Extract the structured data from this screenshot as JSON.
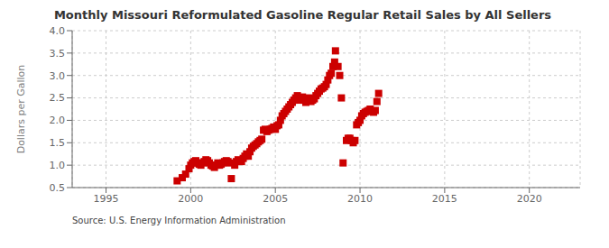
{
  "chart_data": {
    "type": "scatter",
    "title": "Monthly Missouri Reformulated Gasoline Regular Retail Sales by All Sellers",
    "y_label": "Dollars per Gallon",
    "annotations": [
      "Source: U.S. Energy Information Administration"
    ],
    "color": "#cc0000",
    "marker": "square",
    "grid": true,
    "xlim": [
      1993.0,
      2023.0
    ],
    "ylim": [
      0.5,
      4.0
    ],
    "xticks": [
      1995,
      2000,
      2005,
      2010,
      2015,
      2020
    ],
    "yticks": [
      0.5,
      {
        "value": 1.0,
        "label": "1.0"
      },
      1.5,
      {
        "value": 2.0,
        "label": "2.0"
      },
      2.5,
      {
        "value": 3.0,
        "label": "3.0"
      },
      3.5,
      {
        "value": 4.0,
        "label": "4.0"
      }
    ],
    "x": [
      1999.2,
      1999.5,
      1999.7,
      1999.9,
      2000.0,
      2000.1,
      2000.2,
      2000.3,
      2000.4,
      2000.5,
      2000.6,
      2000.7,
      2000.8,
      2000.9,
      2001.0,
      2001.1,
      2001.2,
      2001.3,
      2001.4,
      2001.5,
      2001.6,
      2001.7,
      2001.8,
      2001.9,
      2002.0,
      2002.1,
      2002.2,
      2002.3,
      2002.4,
      2002.6,
      2002.7,
      2002.8,
      2002.9,
      2003.0,
      2003.1,
      2003.2,
      2003.3,
      2003.4,
      2003.5,
      2003.6,
      2003.7,
      2003.8,
      2003.9,
      2004.0,
      2004.1,
      2004.2,
      2004.3,
      2004.4,
      2004.5,
      2004.6,
      2004.7,
      2004.8,
      2004.9,
      2005.0,
      2005.1,
      2005.2,
      2005.3,
      2005.4,
      2005.5,
      2005.6,
      2005.7,
      2005.8,
      2005.9,
      2006.0,
      2006.1,
      2006.2,
      2006.3,
      2006.4,
      2006.5,
      2006.6,
      2006.7,
      2006.8,
      2006.9,
      2007.0,
      2007.1,
      2007.2,
      2007.3,
      2007.4,
      2007.5,
      2007.6,
      2007.7,
      2007.8,
      2007.9,
      2008.0,
      2008.1,
      2008.2,
      2008.3,
      2008.4,
      2008.5,
      2008.55,
      2008.7,
      2008.8,
      2008.9,
      2009.0,
      2009.2,
      2009.3,
      2009.4,
      2009.5,
      2009.6,
      2009.7,
      2009.8,
      2009.9,
      2010.0,
      2010.1,
      2010.2,
      2010.3,
      2010.4,
      2010.5,
      2010.6,
      2010.7,
      2010.8,
      2010.9,
      2011.0,
      2011.1
    ],
    "values": [
      0.65,
      0.72,
      0.8,
      0.92,
      1.0,
      1.05,
      1.08,
      1.1,
      1.05,
      1.02,
      1.0,
      1.05,
      1.08,
      1.12,
      1.1,
      1.05,
      1.0,
      0.98,
      0.95,
      1.0,
      1.05,
      1.0,
      1.02,
      1.05,
      1.08,
      1.1,
      1.08,
      1.05,
      0.7,
      1.0,
      1.08,
      1.12,
      1.1,
      1.08,
      1.15,
      1.2,
      1.25,
      1.2,
      1.3,
      1.38,
      1.42,
      1.45,
      1.48,
      1.52,
      1.55,
      1.58,
      1.78,
      1.8,
      1.75,
      1.78,
      1.8,
      1.82,
      1.85,
      1.8,
      1.88,
      1.9,
      2.0,
      2.1,
      2.15,
      2.2,
      2.25,
      2.3,
      2.35,
      2.4,
      2.45,
      2.5,
      2.55,
      2.45,
      2.48,
      2.52,
      2.45,
      2.4,
      2.45,
      2.5,
      2.42,
      2.45,
      2.48,
      2.55,
      2.6,
      2.65,
      2.7,
      2.72,
      2.75,
      2.8,
      2.9,
      3.0,
      3.05,
      3.2,
      3.3,
      3.55,
      3.2,
      3.0,
      2.5,
      1.05,
      1.55,
      1.6,
      1.6,
      1.55,
      1.5,
      1.55,
      1.9,
      1.95,
      2.0,
      2.1,
      2.15,
      2.18,
      2.2,
      2.22,
      2.25,
      2.2,
      2.18,
      2.22,
      2.42,
      2.6
    ]
  }
}
